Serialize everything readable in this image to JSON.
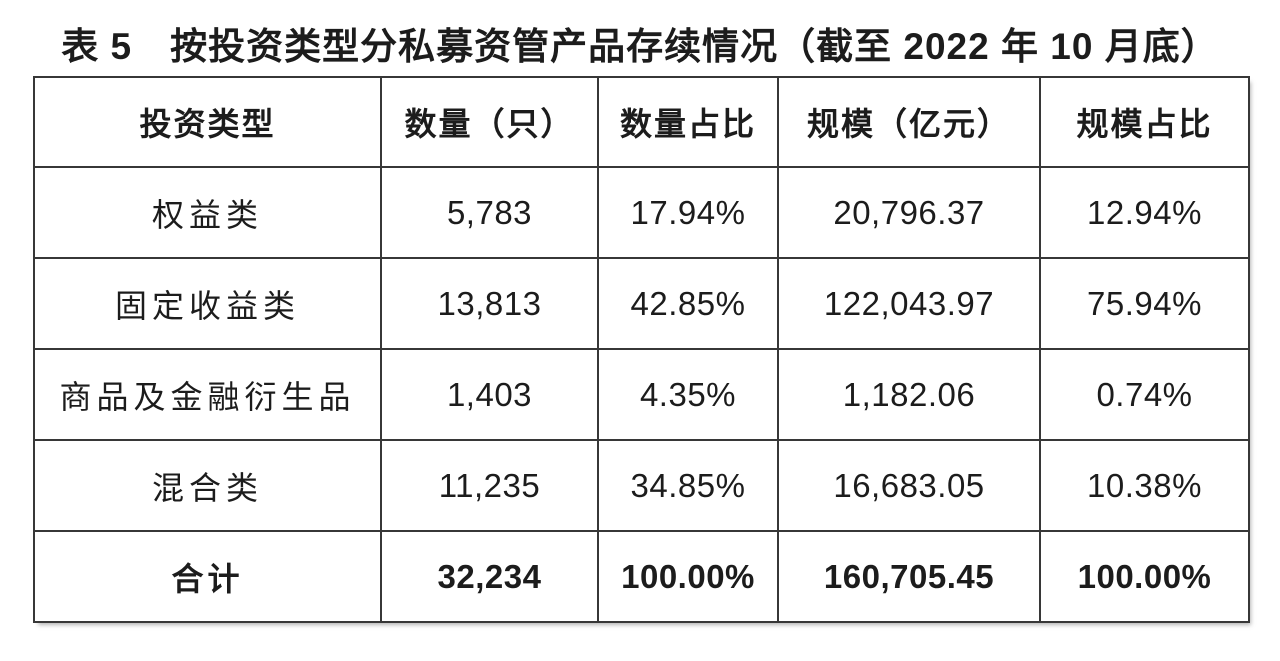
{
  "title": "表 5　按投资类型分私募资管产品存续情况（截至 2022 年 10 月底）",
  "colors": {
    "text": "#1c1c1c",
    "border": "#373737",
    "background": "#ffffff"
  },
  "table": {
    "headers": [
      "投资类型",
      "数量（只）",
      "数量占比",
      "规模（亿元）",
      "规模占比"
    ],
    "rows": [
      {
        "cells": [
          "权益类",
          "5,783",
          "17.94%",
          "20,796.37",
          "12.94%"
        ]
      },
      {
        "cells": [
          "固定收益类",
          "13,813",
          "42.85%",
          "122,043.97",
          "75.94%"
        ]
      },
      {
        "cells": [
          "商品及金融衍生品",
          "1,403",
          "4.35%",
          "1,182.06",
          "0.74%"
        ]
      },
      {
        "cells": [
          "混合类",
          "11,235",
          "34.85%",
          "16,683.05",
          "10.38%"
        ]
      },
      {
        "cells": [
          "合计",
          "32,234",
          "100.00%",
          "160,705.45",
          "100.00%"
        ],
        "is_total": true
      }
    ]
  },
  "chart_data": {
    "type": "table",
    "title": "表5 按投资类型分私募资管产品存续情况（截至2022年10月底）",
    "columns": [
      "投资类型",
      "数量（只）",
      "数量占比",
      "规模（亿元）",
      "规模占比"
    ],
    "rows": [
      [
        "权益类",
        5783,
        "17.94%",
        20796.37,
        "12.94%"
      ],
      [
        "固定收益类",
        13813,
        "42.85%",
        122043.97,
        "75.94%"
      ],
      [
        "商品及金融衍生品",
        1403,
        "4.35%",
        1182.06,
        "0.74%"
      ],
      [
        "混合类",
        11235,
        "34.85%",
        16683.05,
        "10.38%"
      ],
      [
        "合计",
        32234,
        "100.00%",
        160705.45,
        "100.00%"
      ]
    ]
  }
}
